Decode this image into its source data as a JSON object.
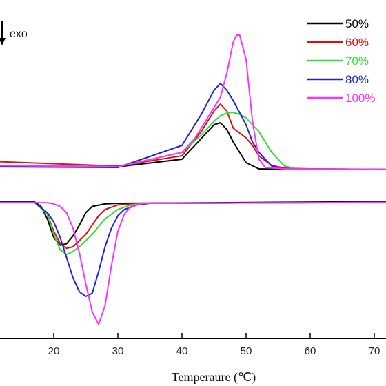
{
  "chart_data": {
    "type": "line",
    "xlabel": "Temperaure (℃)",
    "xlim": [
      10,
      75
    ],
    "xticks": [
      20,
      30,
      40,
      50,
      60,
      70
    ],
    "annotation": "exo",
    "legend_placement": "top-right",
    "series": [
      {
        "name": "50%",
        "color": "#000000",
        "heating": [
          [
            10,
            0.6
          ],
          [
            30,
            0.4
          ],
          [
            40,
            1.5
          ],
          [
            43,
            4.5
          ],
          [
            45,
            6.5
          ],
          [
            46,
            6.8
          ],
          [
            47,
            5.8
          ],
          [
            48,
            4.0
          ],
          [
            50,
            1.0
          ],
          [
            52,
            0.1
          ],
          [
            60,
            0.0
          ],
          [
            75,
            0.0
          ]
        ],
        "cooling": [
          [
            10,
            0.5
          ],
          [
            17,
            0.5
          ],
          [
            18,
            -1.0
          ],
          [
            19,
            -5.0
          ],
          [
            20,
            -11.0
          ],
          [
            21,
            -13.5
          ],
          [
            22,
            -13.0
          ],
          [
            23,
            -10.5
          ],
          [
            24,
            -7.0
          ],
          [
            25,
            -3.0
          ],
          [
            26,
            -1.0
          ],
          [
            28,
            -0.2
          ],
          [
            30,
            0.0
          ],
          [
            75,
            0.6
          ]
        ]
      },
      {
        "name": "60%",
        "color": "#e01010",
        "heating": [
          [
            10,
            1.2
          ],
          [
            30,
            0.5
          ],
          [
            40,
            2.0
          ],
          [
            43,
            5.5
          ],
          [
            45,
            8.5
          ],
          [
            46,
            9.5
          ],
          [
            47,
            8.5
          ],
          [
            48,
            6.0
          ],
          [
            49,
            5.3
          ],
          [
            50,
            4.6
          ],
          [
            51,
            3.5
          ],
          [
            52,
            2.0
          ],
          [
            54,
            0.6
          ],
          [
            56,
            0.2
          ],
          [
            60,
            0.1
          ],
          [
            75,
            0.0
          ]
        ],
        "cooling": [
          [
            10,
            0.3
          ],
          [
            17,
            0.3
          ],
          [
            19,
            -3.5
          ],
          [
            20,
            -9.0
          ],
          [
            21,
            -13.0
          ],
          [
            22,
            -14.5
          ],
          [
            23,
            -14.0
          ],
          [
            24,
            -12.0
          ],
          [
            25,
            -10.0
          ],
          [
            26,
            -7.0
          ],
          [
            27,
            -4.0
          ],
          [
            28,
            -2.0
          ],
          [
            30,
            -0.5
          ],
          [
            35,
            0.0
          ],
          [
            75,
            0.3
          ]
        ]
      },
      {
        "name": "70%",
        "color": "#33dd33",
        "heating": [
          [
            10,
            0.6
          ],
          [
            30,
            0.4
          ],
          [
            40,
            2.5
          ],
          [
            43,
            5.0
          ],
          [
            45,
            7.0
          ],
          [
            46,
            7.8
          ],
          [
            47,
            8.2
          ],
          [
            48,
            8.3
          ],
          [
            49,
            8.0
          ],
          [
            50,
            7.5
          ],
          [
            52,
            5.5
          ],
          [
            54,
            2.5
          ],
          [
            56,
            0.5
          ],
          [
            58,
            0.1
          ],
          [
            75,
            0.0
          ]
        ],
        "cooling": [
          [
            10,
            0.3
          ],
          [
            17,
            0.3
          ],
          [
            19,
            -3.5
          ],
          [
            20,
            -10.0
          ],
          [
            21,
            -15.0
          ],
          [
            22,
            -16.5
          ],
          [
            23,
            -15.5
          ],
          [
            24,
            -14.0
          ],
          [
            26,
            -10.0
          ],
          [
            28,
            -5.0
          ],
          [
            30,
            -2.0
          ],
          [
            32,
            -0.5
          ],
          [
            35,
            0.0
          ],
          [
            75,
            0.3
          ]
        ]
      },
      {
        "name": "80%",
        "color": "#2222cc",
        "heating": [
          [
            10,
            0.4
          ],
          [
            30,
            0.3
          ],
          [
            40,
            3.5
          ],
          [
            43,
            8.0
          ],
          [
            45,
            11.5
          ],
          [
            46,
            12.5
          ],
          [
            47,
            11.5
          ],
          [
            48,
            10.0
          ],
          [
            50,
            6.5
          ],
          [
            51,
            4.0
          ],
          [
            52,
            2.5
          ],
          [
            54,
            0.5
          ],
          [
            56,
            0.1
          ],
          [
            75,
            0.0
          ]
        ],
        "cooling": [
          [
            10,
            0.3
          ],
          [
            17,
            0.3
          ],
          [
            19,
            -3.0
          ],
          [
            20,
            -6.0
          ],
          [
            21,
            -11.0
          ],
          [
            22,
            -17.5
          ],
          [
            23,
            -24.0
          ],
          [
            24,
            -28.5
          ],
          [
            25,
            -30.0
          ],
          [
            26,
            -29.0
          ],
          [
            27,
            -22.0
          ],
          [
            28,
            -14.0
          ],
          [
            29,
            -8.0
          ],
          [
            30,
            -4.0
          ],
          [
            31,
            -2.0
          ],
          [
            33,
            -0.5
          ],
          [
            35,
            0.0
          ],
          [
            75,
            0.3
          ]
        ]
      },
      {
        "name": "100%",
        "color": "#ff33ff",
        "heating": [
          [
            10,
            0.6
          ],
          [
            30,
            0.4
          ],
          [
            40,
            2.5
          ],
          [
            42,
            4.5
          ],
          [
            44,
            7.5
          ],
          [
            46,
            10.5
          ],
          [
            47,
            14.0
          ],
          [
            48,
            18.5
          ],
          [
            48.5,
            19.5
          ],
          [
            49,
            19.5
          ],
          [
            50,
            16.0
          ],
          [
            51,
            7.0
          ],
          [
            52,
            1.5
          ],
          [
            53,
            0.3
          ],
          [
            56,
            0.1
          ],
          [
            75,
            0.0
          ]
        ],
        "cooling": [
          [
            10,
            0.2
          ],
          [
            19,
            0.2
          ],
          [
            20,
            -0.2
          ],
          [
            21,
            -1.0
          ],
          [
            22,
            -3.0
          ],
          [
            23,
            -8.0
          ],
          [
            24,
            -16.0
          ],
          [
            25,
            -26.0
          ],
          [
            26,
            -35.0
          ],
          [
            27,
            -39.0
          ],
          [
            28,
            -33.0
          ],
          [
            29,
            -20.0
          ],
          [
            30,
            -9.0
          ],
          [
            31,
            -3.5
          ],
          [
            32,
            -1.0
          ],
          [
            34,
            0.0
          ],
          [
            75,
            0.3
          ]
        ]
      }
    ]
  }
}
